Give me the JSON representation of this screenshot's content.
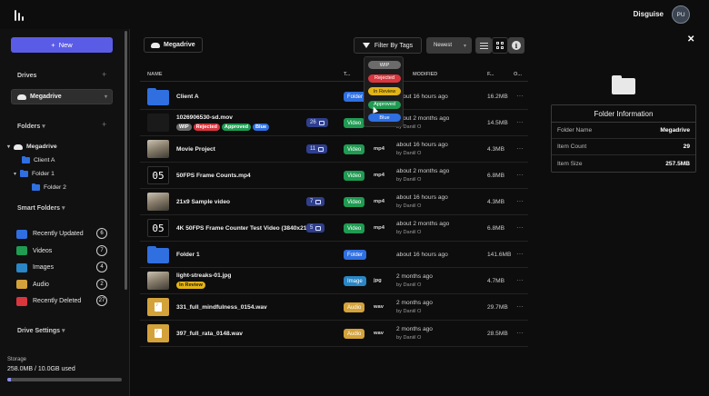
{
  "app": {
    "user_name": "Disguise",
    "user_initials": "PU"
  },
  "sidebar": {
    "new_label": "New",
    "drives_title": "Drives",
    "selected_drive": "Megadrive",
    "folders_title": "Folders",
    "tree": {
      "root": "Megadrive",
      "items": [
        "Client A",
        "Folder 1",
        "Folder 2"
      ]
    },
    "smart_folders_title": "Smart Folders",
    "smart_folders": [
      {
        "label": "Recently Updated",
        "count": "6",
        "color": "#2f6fe0"
      },
      {
        "label": "Videos",
        "count": "7",
        "color": "#1f9b52"
      },
      {
        "label": "Images",
        "count": "4",
        "color": "#2a86c4"
      },
      {
        "label": "Audio",
        "count": "2",
        "color": "#d4a23a"
      },
      {
        "label": "Recently Deleted",
        "count": "27",
        "color": "#d9363e"
      }
    ],
    "drive_settings": "Drive Settings",
    "storage_label": "Storage",
    "storage_value": "258.0MB / 10.0GB used",
    "storage_fraction": 0.0258
  },
  "toolbar": {
    "breadcrumb": "Megadrive",
    "filter_label": "Filter By Tags",
    "sort_label": "Newest"
  },
  "table": {
    "headers": {
      "name": "NAME",
      "type": "T...",
      "modified": "MODIFIED",
      "size": "F...",
      "options": "O..."
    },
    "rows": [
      {
        "name": "Client A",
        "thumb": "folder",
        "type": "Folder",
        "ext": "",
        "modified": "about 16 hours ago",
        "by": "",
        "size": "16.2MB",
        "tags": [],
        "comments": ""
      },
      {
        "name": "1026906530-sd.mov",
        "thumb": "dark",
        "type": "Video",
        "ext": "mov",
        "modified": "about 2 months ago",
        "by": "by Daniil O",
        "size": "14.5MB",
        "tags": [
          "WIP",
          "Rejected",
          "Approved",
          "Blue"
        ],
        "comments": "26"
      },
      {
        "name": "Movie Project",
        "thumb": "image",
        "type": "Video",
        "ext": "mp4",
        "modified": "about 16 hours ago",
        "by": "by Daniil O",
        "size": "4.3MB",
        "tags": [],
        "comments": "11"
      },
      {
        "name": "50FPS Frame Counts.mp4",
        "thumb": "mono",
        "thumb_text": "05",
        "type": "Video",
        "ext": "mp4",
        "modified": "about 2 months ago",
        "by": "by Daniil O",
        "size": "6.8MB",
        "tags": [],
        "comments": ""
      },
      {
        "name": "21x9 Sample video",
        "thumb": "image",
        "type": "Video",
        "ext": "mp4",
        "modified": "about 16 hours ago",
        "by": "by Daniil O",
        "size": "4.3MB",
        "tags": [],
        "comments": "7"
      },
      {
        "name": "4K 50FPS Frame Counter Test Video (3840x21...",
        "thumb": "mono",
        "thumb_text": "05",
        "type": "Video",
        "ext": "mp4",
        "modified": "about 2 months ago",
        "by": "by Daniil O",
        "size": "6.8MB",
        "tags": [],
        "comments": "5"
      },
      {
        "name": "Folder 1",
        "thumb": "folder",
        "type": "Folder",
        "ext": "",
        "modified": "about 16 hours ago",
        "by": "",
        "size": "141.6MB",
        "tags": [],
        "comments": ""
      },
      {
        "name": "light-streaks-01.jpg",
        "thumb": "image",
        "type": "Image",
        "ext": "jpg",
        "modified": "2 months ago",
        "by": "by Daniil O",
        "size": "4.7MB",
        "tags": [
          "In Review"
        ],
        "comments": ""
      },
      {
        "name": "331_full_mindfulness_0154.wav",
        "thumb": "audio",
        "type": "Audio",
        "ext": "wav",
        "modified": "2 months ago",
        "by": "by Daniil O",
        "size": "29.7MB",
        "tags": [],
        "comments": ""
      },
      {
        "name": "397_full_rata_0148.wav",
        "thumb": "audio",
        "type": "Audio",
        "ext": "wav",
        "modified": "2 months ago",
        "by": "by Daniil O",
        "size": "28.5MB",
        "tags": [],
        "comments": ""
      }
    ]
  },
  "tag_styles": {
    "WIP": {
      "bg": "#6b6b6b",
      "fg": "#ffffff"
    },
    "Rejected": {
      "bg": "#d9363e",
      "fg": "#ffffff"
    },
    "Approved": {
      "bg": "#1f9b52",
      "fg": "#ffffff"
    },
    "Blue": {
      "bg": "#2f6fe0",
      "fg": "#ffffff"
    },
    "In Review": {
      "bg": "#e3b417",
      "fg": "#2a2000"
    }
  },
  "type_colors": {
    "Folder": "#2f6fe0",
    "Video": "#1f9b52",
    "Image": "#2a86c4",
    "Audio": "#d4a23a"
  },
  "tags_popup": [
    "WIP",
    "Rejected",
    "In Review",
    "Approved",
    "Blue"
  ],
  "info_panel": {
    "title": "Folder Information",
    "rows": [
      {
        "key": "Folder Name",
        "value": "Megadrive"
      },
      {
        "key": "Item Count",
        "value": "29"
      },
      {
        "key": "Item Size",
        "value": "257.5MB"
      }
    ]
  }
}
